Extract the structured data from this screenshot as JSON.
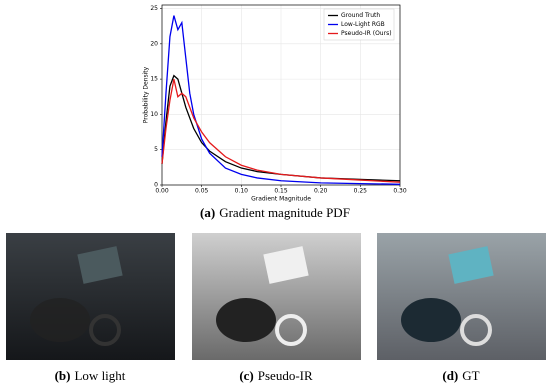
{
  "chart_data": {
    "type": "line",
    "xlabel": "Gradient Magnitude",
    "ylabel": "Probability Density",
    "x": [
      0,
      0.005,
      0.01,
      0.015,
      0.02,
      0.025,
      0.03,
      0.035,
      0.04,
      0.05,
      0.06,
      0.08,
      0.1,
      0.12,
      0.15,
      0.2,
      0.25,
      0.3
    ],
    "series": [
      {
        "name": "Ground Truth",
        "color": "#000000",
        "values": [
          3,
          9,
          14,
          15.5,
          15,
          13,
          11,
          9.5,
          8,
          6,
          4.8,
          3.3,
          2.4,
          1.9,
          1.5,
          1.0,
          0.8,
          0.6
        ]
      },
      {
        "name": "Low-Light RGB",
        "color": "#0000ee",
        "values": [
          4,
          13,
          21,
          24,
          22,
          23,
          18,
          13,
          10,
          6.5,
          4.5,
          2.4,
          1.5,
          1.0,
          0.6,
          0.3,
          0.2,
          0.1
        ]
      },
      {
        "name": "Pseudo-IR (Ours)",
        "color": "#e41a1c",
        "values": [
          3,
          8,
          12,
          15,
          12.5,
          13,
          12.5,
          11,
          9.5,
          7.5,
          6,
          4,
          2.8,
          2.1,
          1.5,
          1.0,
          0.7,
          0.4
        ]
      }
    ],
    "xlim": [
      0,
      0.3
    ],
    "ylim": [
      0,
      25.5
    ],
    "xticks": [
      {
        "value": 0,
        "label": "0.00"
      },
      {
        "value": 0.05,
        "label": "0.05"
      },
      {
        "value": 0.1,
        "label": "0.10"
      },
      {
        "value": 0.15,
        "label": "0.15"
      },
      {
        "value": 0.2,
        "label": "0.20"
      },
      {
        "value": 0.25,
        "label": "0.25"
      },
      {
        "value": 0.3,
        "label": "0.30"
      }
    ],
    "yticks": [
      0,
      5,
      10,
      15,
      20,
      25
    ],
    "grid": true,
    "legend": "upper right"
  },
  "figure": {
    "captions": [
      {
        "tag": "(a)",
        "text": "Gradient magnitude PDF"
      },
      {
        "tag": "(b)",
        "text": "Low light"
      },
      {
        "tag": "(c)",
        "text": "Pseudo-IR"
      },
      {
        "tag": "(d)",
        "text": "GT"
      }
    ]
  }
}
